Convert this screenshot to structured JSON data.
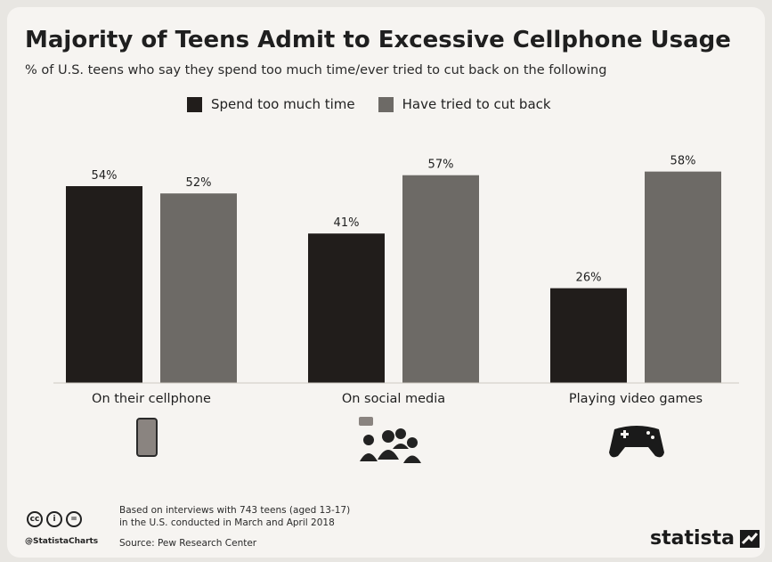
{
  "header": {
    "title": "Majority of Teens Admit to Excessive Cellphone Usage",
    "subtitle": "% of U.S. teens who say they spend too much time/ever tried to cut back on the following"
  },
  "colors": {
    "series_1": "#211d1b",
    "series_2": "#6d6a66",
    "background": "#f6f4f1"
  },
  "chart_data": {
    "type": "bar",
    "categories": [
      "On their cellphone",
      "On social media",
      "Playing video games"
    ],
    "category_icons": [
      "cellphone-icon",
      "social-media-people-icon",
      "gamepad-icon"
    ],
    "series": [
      {
        "name": "Spend too much time",
        "values": [
          54,
          41,
          26
        ],
        "labels": [
          "54%",
          "41%",
          "26%"
        ],
        "color": "#211d1b"
      },
      {
        "name": "Have tried to cut back",
        "values": [
          52,
          57,
          58
        ],
        "labels": [
          "52%",
          "57%",
          "58%"
        ],
        "color": "#6d6a66"
      }
    ],
    "ylim": [
      0,
      60
    ],
    "grid": false,
    "legend_position": "top-center",
    "title": "Majority of Teens Admit to Excessive Cellphone Usage",
    "subtitle": "% of U.S. teens who say they spend too much time/ever tried to cut back on the following"
  },
  "footer": {
    "note_line_1": "Based on interviews with 743 teens (aged 13-17)",
    "note_line_2": "in the U.S. conducted in March and April 2018",
    "source": "Source: Pew Research Center",
    "handle": "@StatistaCharts",
    "brand": "statista"
  }
}
